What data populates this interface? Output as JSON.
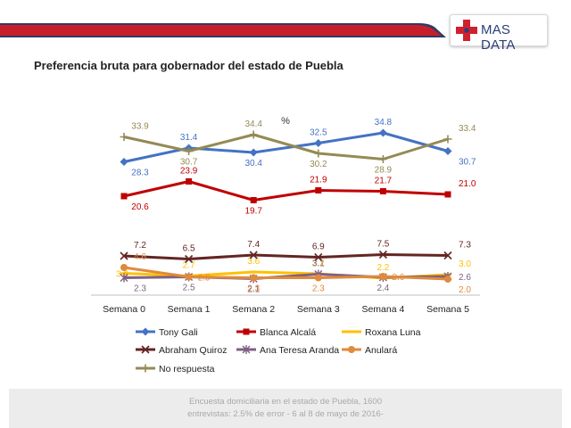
{
  "brand": {
    "name": "MAS DATA",
    "colors": {
      "red": "#d0202e",
      "blue": "#2a3f7a"
    }
  },
  "page_title": "Preferencia bruta para gobernador del estado de Puebla",
  "footer": {
    "line1": "Encuesta domiciliaria en el estado de Puebla, 1600",
    "line2": "entrevistas: 2.5% de error - 6 al 8 de mayo de 2016-"
  },
  "chart_data": {
    "type": "line",
    "title": "%",
    "categories": [
      "Semana 0",
      "Semana 1",
      "Semana 2",
      "Semana 3",
      "Semana 4",
      "Semana 5"
    ],
    "ylim": [
      0,
      40
    ],
    "grid": false,
    "legend_position": "bottom",
    "series": [
      {
        "name": "Tony Gali",
        "color": "#4472c4",
        "marker": "diamond",
        "values": [
          28.3,
          31.4,
          30.4,
          32.5,
          34.8,
          30.7
        ]
      },
      {
        "name": "Blanca Alcalá",
        "color": "#c00000",
        "marker": "square",
        "values": [
          20.6,
          23.9,
          19.7,
          21.9,
          21.7,
          21.0
        ]
      },
      {
        "name": "Roxana Luna",
        "color": "#ffc000",
        "marker": "dash",
        "values": [
          3.3,
          2.7,
          3.6,
          3.2,
          2.2,
          3.0
        ]
      },
      {
        "name": "Abraham Quiroz",
        "color": "#632523",
        "marker": "x",
        "values": [
          7.2,
          6.5,
          7.4,
          6.9,
          7.5,
          7.3
        ]
      },
      {
        "name": "Ana Teresa Aranda",
        "color": "#7f6084",
        "marker": "star",
        "values": [
          2.3,
          2.5,
          2.1,
          3.1,
          2.4,
          2.6
        ]
      },
      {
        "name": "Anulará",
        "color": "#e08a3c",
        "marker": "circle",
        "values": [
          4.6,
          2.5,
          2.3,
          2.3,
          2.6,
          2.0
        ]
      },
      {
        "name": "No respuesta",
        "color": "#948a54",
        "marker": "plus",
        "values": [
          33.9,
          30.7,
          34.4,
          30.2,
          28.9,
          33.4
        ]
      }
    ]
  }
}
